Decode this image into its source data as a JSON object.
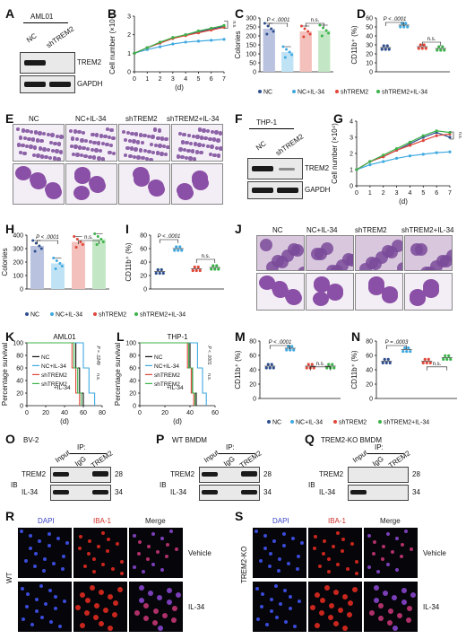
{
  "letters": {
    "A": "A",
    "B": "B",
    "C": "C",
    "D": "D",
    "E": "E",
    "F": "F",
    "G": "G",
    "H": "H",
    "I": "I",
    "J": "J",
    "K": "K",
    "L": "L",
    "M": "M",
    "N": "N",
    "O": "O",
    "P": "P",
    "Q": "Q",
    "R": "R",
    "S": "S"
  },
  "blotA": {
    "cell": "AML01",
    "lane1": "NC",
    "lane2": "shTREM2",
    "band1": "TREM2",
    "band2": "GAPDH"
  },
  "blotF": {
    "cell": "THP-1",
    "lane1": "NC",
    "lane2": "shTREM2",
    "band1": "TREM2",
    "band2": "GAPDH"
  },
  "groups": {
    "nc": "NC",
    "ncil34": "NC+IL-34",
    "sh": "shTREM2",
    "shil34": "shTREM2+IL-34",
    "shil34_split1": "shTREM2",
    "shil34_split2": "+IL-34"
  },
  "colors": {
    "nc": "#2f4f8f",
    "ncil34": "#3fa9e0",
    "sh": "#e0473a",
    "shil34": "#3cb34a"
  },
  "stats": {
    "p_lt_0001": "P < .0001",
    "p_0003": "P = .0003",
    "ns": "n.s.",
    "pK": "P = .0249",
    "pL": "P < .0001"
  },
  "axes": {
    "cell_number": "Cell number (×10⁴)",
    "colonies": "Colonies",
    "cd11b": "CD11b⁺ (%)",
    "days": "(d)",
    "survival": "Percentage survival"
  },
  "survival_titles": {
    "K": "AML01",
    "L": "THP-1"
  },
  "ip": {
    "O": {
      "title": "BV-2",
      "input": "Input",
      "igg": "IgG",
      "trem2": "TREM2",
      "ip": "IP:",
      "row1": "TREM2",
      "row2": "IL-34",
      "mw1": "28",
      "mw2": "34",
      "ib": "IB"
    },
    "P": {
      "title": "WT BMDM",
      "input": "Input",
      "igg": "IgG",
      "trem2": "TREM2",
      "ip": "IP:",
      "row1": "TREM2",
      "row2": "IL-34",
      "mw1": "28",
      "mw2": "34",
      "ib": "IB"
    },
    "Q": {
      "title": "TREM2-KO BMDM",
      "input": "Input",
      "igg": "IgG",
      "trem2": "TREM2",
      "ip": "IP:",
      "row1": "TREM2",
      "row2": "IL-34",
      "mw1": "28",
      "mw2": "34",
      "ib": "IB"
    }
  },
  "fluor": {
    "dapi": "DAPI",
    "iba": "IBA-1",
    "merge": "Merge",
    "vehicle": "Vehicle",
    "il34": "IL-34",
    "wt": "WT",
    "ko": "TREM2-KO"
  },
  "chart_data": [
    {
      "panel": "B",
      "type": "line",
      "title": "",
      "xlabel": "(d)",
      "ylabel": "Cell number (×10⁴)",
      "x": [
        0,
        1,
        2,
        3,
        4,
        5,
        6,
        7
      ],
      "xlim": [
        0,
        7
      ],
      "ylim": [
        0,
        3
      ],
      "yticks": [
        0,
        1,
        2,
        3
      ],
      "series": [
        {
          "name": "NC",
          "values": [
            1.0,
            1.3,
            1.55,
            1.8,
            2.0,
            2.15,
            2.3,
            2.45
          ]
        },
        {
          "name": "NC+IL-34",
          "values": [
            1.0,
            1.2,
            1.35,
            1.5,
            1.6,
            1.65,
            1.7,
            1.75
          ]
        },
        {
          "name": "shTREM2",
          "values": [
            1.0,
            1.3,
            1.55,
            1.8,
            1.95,
            2.1,
            2.25,
            2.4
          ]
        },
        {
          "name": "shTREM2+IL-34",
          "values": [
            1.0,
            1.3,
            1.6,
            1.85,
            2.0,
            2.2,
            2.35,
            2.5
          ]
        }
      ]
    },
    {
      "panel": "C",
      "type": "bar",
      "title": "",
      "ylabel": "Colonies",
      "ylim": [
        0,
        300
      ],
      "yticks": [
        0,
        50,
        100,
        150,
        200,
        250,
        300
      ],
      "categories": [
        "NC",
        "NC+IL-34",
        "shTREM2",
        "shTREM2+IL-34"
      ],
      "values": [
        240,
        110,
        225,
        230
      ]
    },
    {
      "panel": "D",
      "type": "scatter",
      "title": "",
      "ylabel": "CD11b⁺ (%)",
      "ylim": [
        0,
        60
      ],
      "yticks": [
        0,
        10,
        20,
        30,
        40,
        50,
        60
      ],
      "categories": [
        "NC",
        "NC+IL-34",
        "shTREM2",
        "shTREM2+IL-34"
      ],
      "values": [
        27,
        52,
        28,
        26
      ]
    },
    {
      "panel": "G",
      "type": "line",
      "title": "",
      "xlabel": "(d)",
      "ylabel": "Cell number (×10⁴)",
      "x": [
        0,
        1,
        2,
        3,
        4,
        5,
        6,
        7
      ],
      "xlim": [
        0,
        7
      ],
      "ylim": [
        0,
        4
      ],
      "yticks": [
        0,
        1,
        2,
        3,
        4
      ],
      "series": [
        {
          "name": "NC",
          "values": [
            1.0,
            1.5,
            1.8,
            2.2,
            2.6,
            3.0,
            3.3,
            3.0
          ]
        },
        {
          "name": "NC+IL-34",
          "values": [
            1.0,
            1.3,
            1.5,
            1.7,
            1.85,
            1.95,
            2.05,
            2.1
          ]
        },
        {
          "name": "shTREM2",
          "values": [
            1.0,
            1.5,
            1.8,
            2.2,
            2.5,
            2.8,
            3.1,
            3.2
          ]
        },
        {
          "name": "shTREM2+IL-34",
          "values": [
            1.0,
            1.5,
            1.9,
            2.3,
            2.7,
            3.1,
            3.4,
            3.3
          ]
        }
      ]
    },
    {
      "panel": "H",
      "type": "bar",
      "title": "",
      "ylabel": "Colonies",
      "ylim": [
        0,
        400
      ],
      "yticks": [
        0,
        100,
        200,
        300,
        400
      ],
      "categories": [
        "NC",
        "NC+IL-34",
        "shTREM2",
        "shTREM2+IL-34"
      ],
      "values": [
        320,
        190,
        350,
        370
      ]
    },
    {
      "panel": "I",
      "type": "scatter",
      "title": "",
      "ylabel": "CD11b⁺ (%)",
      "ylim": [
        0,
        80
      ],
      "yticks": [
        0,
        20,
        40,
        60,
        80
      ],
      "categories": [
        "NC",
        "NC+IL-34",
        "shTREM2",
        "shTREM2+IL-34"
      ],
      "values": [
        26,
        60,
        30,
        32
      ]
    },
    {
      "panel": "K",
      "type": "line",
      "title": "AML01",
      "xlabel": "(d)",
      "ylabel": "Percentage survival",
      "xlim": [
        0,
        80
      ],
      "ylim": [
        0,
        100
      ],
      "xticks": [
        0,
        20,
        40,
        60,
        80
      ],
      "yticks": [
        0,
        20,
        40,
        60,
        80,
        100
      ],
      "series": [
        {
          "name": "NC",
          "values": [
            [
              0,
              100
            ],
            [
              52,
              100
            ],
            [
              52,
              60
            ],
            [
              56,
              60
            ],
            [
              56,
              20
            ],
            [
              60,
              20
            ],
            [
              60,
              0
            ]
          ]
        },
        {
          "name": "NC+IL-34",
          "values": [
            [
              0,
              100
            ],
            [
              60,
              100
            ],
            [
              60,
              60
            ],
            [
              66,
              60
            ],
            [
              66,
              20
            ],
            [
              72,
              20
            ],
            [
              72,
              0
            ]
          ]
        },
        {
          "name": "shTREM2",
          "values": [
            [
              0,
              100
            ],
            [
              48,
              100
            ],
            [
              48,
              60
            ],
            [
              52,
              60
            ],
            [
              52,
              20
            ],
            [
              56,
              20
            ],
            [
              56,
              0
            ]
          ]
        },
        {
          "name": "shTREM2+IL-34",
          "values": [
            [
              0,
              100
            ],
            [
              50,
              100
            ],
            [
              50,
              60
            ],
            [
              54,
              60
            ],
            [
              54,
              20
            ],
            [
              58,
              20
            ],
            [
              58,
              0
            ]
          ]
        }
      ]
    },
    {
      "panel": "L",
      "type": "line",
      "title": "THP-1",
      "xlabel": "(d)",
      "ylabel": "Percentage survival",
      "xlim": [
        0,
        60
      ],
      "ylim": [
        0,
        100
      ],
      "xticks": [
        0,
        20,
        40,
        60
      ],
      "yticks": [
        0,
        20,
        40,
        60,
        80,
        100
      ],
      "series": [
        {
          "name": "NC",
          "values": [
            [
              0,
              100
            ],
            [
              40,
              100
            ],
            [
              40,
              60
            ],
            [
              42,
              60
            ],
            [
              42,
              20
            ],
            [
              45,
              20
            ],
            [
              45,
              0
            ]
          ]
        },
        {
          "name": "NC+IL-34",
          "values": [
            [
              0,
              100
            ],
            [
              46,
              100
            ],
            [
              46,
              60
            ],
            [
              50,
              60
            ],
            [
              50,
              20
            ],
            [
              53,
              20
            ],
            [
              53,
              0
            ]
          ]
        },
        {
          "name": "shTREM2",
          "values": [
            [
              0,
              100
            ],
            [
              38,
              100
            ],
            [
              38,
              60
            ],
            [
              41,
              60
            ],
            [
              41,
              20
            ],
            [
              43,
              20
            ],
            [
              43,
              0
            ]
          ]
        },
        {
          "name": "shTREM2+IL-34",
          "values": [
            [
              0,
              100
            ],
            [
              39,
              100
            ],
            [
              39,
              60
            ],
            [
              42,
              60
            ],
            [
              42,
              20
            ],
            [
              44,
              20
            ],
            [
              44,
              0
            ]
          ]
        }
      ]
    },
    {
      "panel": "M",
      "type": "scatter",
      "title": "",
      "ylabel": "CD11b⁺ (%)",
      "ylim": [
        0,
        80
      ],
      "yticks": [
        0,
        20,
        40,
        60,
        80
      ],
      "categories": [
        "NC",
        "NC+IL-34",
        "shTREM2",
        "shTREM2+IL-34"
      ],
      "values": [
        45,
        70,
        45,
        45
      ]
    },
    {
      "panel": "N",
      "type": "scatter",
      "title": "",
      "ylabel": "CD11b⁺ (%)",
      "ylim": [
        0,
        80
      ],
      "yticks": [
        0,
        20,
        40,
        60,
        80
      ],
      "categories": [
        "NC",
        "NC+IL-34",
        "shTREM2",
        "shTREM2+IL-34"
      ],
      "values": [
        52,
        68,
        52,
        57
      ]
    }
  ]
}
